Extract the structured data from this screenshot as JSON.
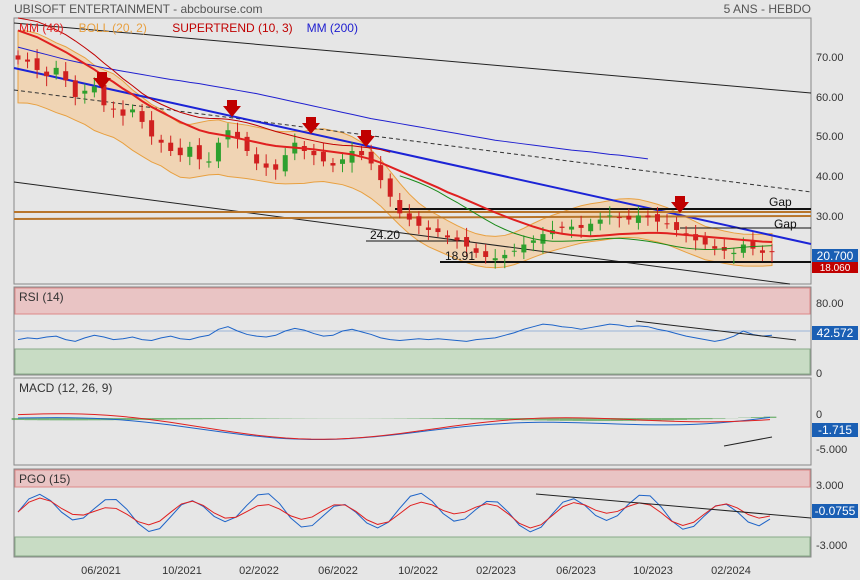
{
  "header": {
    "title": "UBISOFT ENTERTAINMENT - abcbourse.com",
    "period": "5 ANS - HEBDO"
  },
  "chart_data": [
    {
      "type": "candlestick",
      "panel": "price",
      "legend": [
        {
          "name": "MM (40)",
          "color": "#e02020"
        },
        {
          "name": "BOLL (20, 2)",
          "color": "#e8a040"
        },
        {
          "name": "SUPERTREND (10, 3)",
          "color": "#c00000"
        },
        {
          "name": "MM (200)",
          "color": "#2020d0"
        }
      ],
      "ylim": [
        13,
        77
      ],
      "y_ticks": [
        "70.00",
        "60.00",
        "50.00",
        "40.00",
        "30.00",
        "20.00"
      ],
      "close": [
        67,
        66.5,
        64.5,
        63,
        65,
        62,
        58,
        59.5,
        60.5,
        56,
        55,
        53.5,
        55,
        52,
        48.5,
        47,
        45,
        44,
        46,
        43,
        42.5,
        47,
        50,
        48,
        45,
        42,
        41,
        40.5,
        44,
        47,
        45,
        44,
        42.5,
        41.5,
        43,
        45,
        44,
        42,
        38,
        34,
        30,
        28.5,
        27,
        26,
        25.5,
        24.2,
        23.5,
        22,
        20.5,
        19.5,
        19.2,
        20,
        21,
        22.5,
        23.5,
        25,
        26,
        26.5,
        26.8,
        26.5,
        27.5,
        28.5,
        29.5,
        29,
        28.5,
        29.5,
        29,
        28,
        27.5,
        26,
        25,
        23.5,
        22.5,
        21.5,
        21,
        20.5,
        22.5,
        21.5,
        20.5,
        20.7
      ],
      "ma40": [
        74,
        73.2,
        72.4,
        71.2,
        70,
        68.8,
        67.4,
        66,
        64.6,
        63,
        61.6,
        60,
        58.6,
        57,
        55.6,
        54.4,
        53.2,
        52,
        51,
        50,
        49.4,
        49,
        48.6,
        48.1,
        47.6,
        47.1,
        46.6,
        46.2,
        46,
        45.8,
        45.6,
        45.4,
        45.1,
        44.8,
        44.5,
        44.2,
        43.6,
        43,
        42.2,
        41.2,
        40.2,
        39.2,
        38.2,
        37.2,
        36.2,
        35.1,
        34.2,
        33.2,
        32.2,
        31.2,
        30.2,
        29.3,
        28.4,
        27.6,
        26.8,
        26.1,
        25.5,
        25.1,
        24.8,
        24.6,
        24.5,
        24.6,
        24.8,
        25,
        25.1,
        25.2,
        25.3,
        25.3,
        25.2,
        25,
        24.8,
        24.6,
        24.4,
        24.2,
        24,
        23.8,
        23.6,
        23.4,
        23.2,
        23.1
      ],
      "ma200": [
        70,
        69.4,
        68.8,
        68.2,
        67.6,
        67,
        66.5,
        66,
        65.5,
        65,
        64.6,
        64.2,
        63.8,
        63.4,
        63,
        62.6,
        62.2,
        61.9,
        61.5,
        61.2,
        60.8,
        60.4,
        60,
        59.6,
        59.2,
        58.8,
        58.3,
        57.8,
        57.3,
        56.8,
        56.3,
        55.8,
        55.3,
        54.8,
        54.3,
        53.8,
        53.3,
        52.8,
        52.4,
        52,
        51.6,
        51.2,
        50.8,
        50.4,
        50,
        49.6,
        49.2,
        48.8,
        48.4,
        48,
        47.6,
        47.3,
        47,
        46.7,
        46.4,
        46.1,
        45.8,
        45.5,
        45.2,
        45,
        44.8,
        44.5,
        44.2,
        44,
        43.7,
        43.4,
        43.1
      ],
      "annotations": [
        "24.20",
        "18.91",
        "Gap",
        "Gap"
      ],
      "last_price": "20.700",
      "supertrend_value": "18.060",
      "x_ticks": [
        "06/2021",
        "10/2021",
        "02/2022",
        "06/2022",
        "10/2022",
        "02/2023",
        "06/2023",
        "10/2023",
        "02/2024"
      ]
    },
    {
      "type": "line",
      "panel": "rsi",
      "title": "RSI (14)",
      "y_ticks": [
        "80.00",
        "50",
        "0"
      ],
      "last_value": "42.572",
      "values": [
        40,
        42,
        41,
        43,
        44,
        40,
        38,
        42,
        45,
        43,
        40,
        41,
        43,
        40,
        39,
        42,
        44,
        41,
        40,
        43,
        45,
        52,
        55,
        50,
        46,
        44,
        43,
        45,
        50,
        53,
        51,
        47,
        44,
        45,
        50,
        52,
        49,
        46,
        42,
        40,
        39,
        40,
        41,
        40,
        41,
        40,
        39,
        38,
        40,
        41,
        42,
        45,
        48,
        52,
        55,
        58,
        57,
        55,
        54,
        52,
        54,
        56,
        58,
        57,
        55,
        56,
        55,
        52,
        50,
        47,
        44,
        42,
        40,
        38,
        40,
        44,
        50,
        46,
        44,
        45
      ]
    },
    {
      "type": "line",
      "panel": "macd",
      "title": "MACD (12, 26, 9)",
      "y_ticks": [
        "0",
        "-5.000"
      ],
      "last_value": "-1.715"
    },
    {
      "type": "line",
      "panel": "pgo",
      "title": "PGO (15)",
      "y_ticks": [
        "3.000",
        "0",
        "-3.000"
      ],
      "last_value": "-0.0755"
    }
  ]
}
